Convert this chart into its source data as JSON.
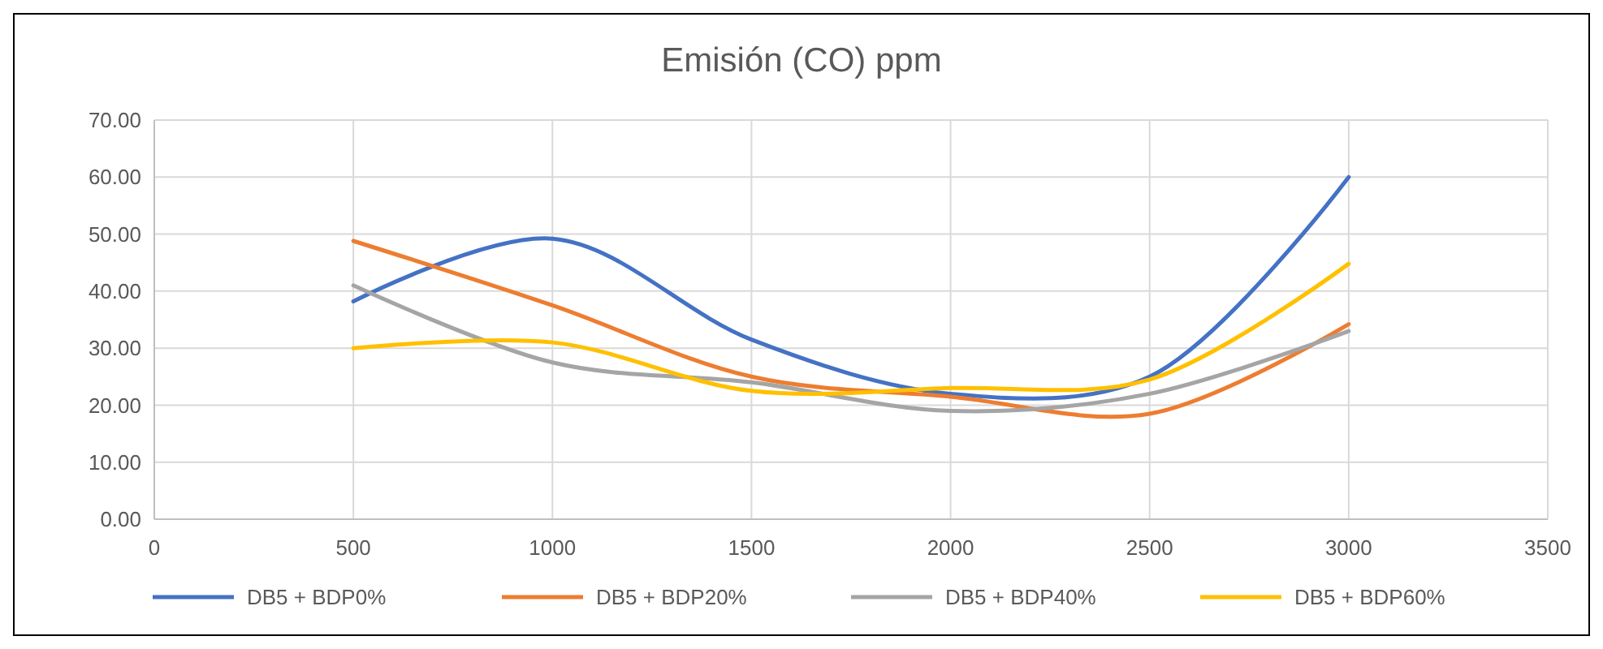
{
  "chart_data": {
    "type": "line",
    "title": "Emisión (CO) ppm",
    "x": [
      500,
      1000,
      1500,
      2000,
      2500,
      3000
    ],
    "series": [
      {
        "name": "DB5 + BDP0%",
        "color": "#4472c4",
        "values": [
          38.2,
          49.2,
          31.5,
          22,
          25,
          60
        ]
      },
      {
        "name": "DB5 + BDP20%",
        "color": "#ed7d31",
        "values": [
          48.8,
          37.5,
          25,
          21.5,
          18.5,
          34.2
        ]
      },
      {
        "name": "DB5 + BDP40%",
        "color": "#a5a5a5",
        "values": [
          41,
          27.5,
          24,
          19,
          22,
          33
        ]
      },
      {
        "name": "DB5 + BDP60%",
        "color": "#ffc000",
        "values": [
          30,
          31,
          22.5,
          23,
          24.5,
          44.8
        ]
      }
    ],
    "xlim": [
      0,
      3500
    ],
    "xticks": [
      0,
      500,
      1000,
      1500,
      2000,
      2500,
      3000,
      3500
    ],
    "ylim": [
      0,
      70
    ],
    "yticks": [
      {
        "value": 0,
        "label": "0.00"
      },
      {
        "value": 10,
        "label": "10.00"
      },
      {
        "value": 20,
        "label": "20.00"
      },
      {
        "value": 30,
        "label": "30.00"
      },
      {
        "value": 40,
        "label": "40.00"
      },
      {
        "value": 50,
        "label": "50.00"
      },
      {
        "value": 60,
        "label": "60.00"
      },
      {
        "value": 70,
        "label": "70.00"
      }
    ],
    "grid": true,
    "legend": "bottom",
    "marker": "none",
    "line_style": "solid"
  }
}
